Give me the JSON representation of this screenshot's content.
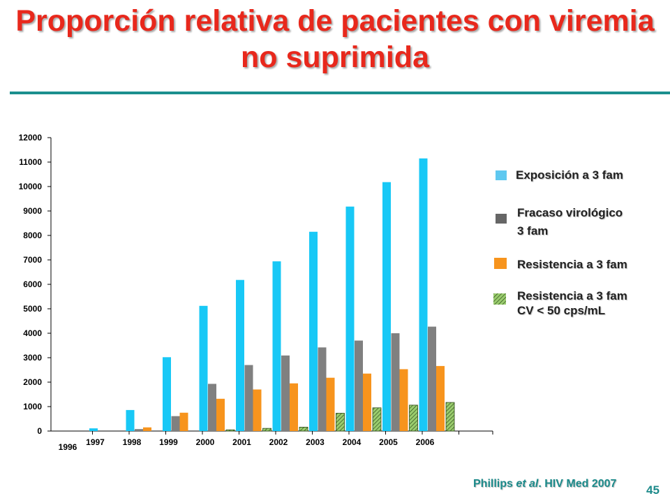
{
  "title": "Proporción relativa de pacientes con viremia no suprimida",
  "citation": {
    "before": "Phillips ",
    "italic": "et al",
    "after": ". HIV Med 2007"
  },
  "page_number": "45",
  "colors": {
    "title": "#e8281c",
    "rule": "#1b8f8e",
    "exposure": "#18c8f6",
    "failure": "#808080",
    "resistance": "#f7941d",
    "resistance_vl": "#9acd6e"
  },
  "legend": [
    {
      "label": "Exposición a 3 fam",
      "color": "#5ec8f0"
    },
    {
      "label": "Fracaso virológico\n3 fam",
      "color": "#666666"
    },
    {
      "label": "Resistencia a 3 fam",
      "color": "#f7941d"
    },
    {
      "label": "Resistencia a 3 fam\nCV < 50 cps/mL",
      "color": "#9acd6e",
      "pattern": "hatched"
    }
  ],
  "chart_data": {
    "type": "bar",
    "categories": [
      "1996",
      "1997",
      "1998",
      "1999",
      "2000",
      "2001",
      "2002",
      "2003",
      "2004",
      "2005",
      "2006"
    ],
    "series": [
      {
        "name": "Exposición a 3 fam",
        "values": [
          0,
          110,
          860,
          3020,
          5120,
          6180,
          6940,
          8150,
          9180,
          10180,
          11150
        ]
      },
      {
        "name": "Fracaso virológico 3 fam",
        "values": [
          0,
          0,
          80,
          610,
          1930,
          2700,
          3090,
          3420,
          3700,
          4000,
          4270
        ]
      },
      {
        "name": "Resistencia a 3 fam",
        "values": [
          0,
          0,
          150,
          750,
          1320,
          1700,
          1950,
          2180,
          2350,
          2530,
          2660
        ]
      },
      {
        "name": "Resistencia a 3 fam CV < 50 cps/mL",
        "values": [
          0,
          0,
          0,
          0,
          50,
          110,
          160,
          730,
          950,
          1060,
          1170
        ]
      }
    ],
    "yticks": [
      "0",
      "1000",
      "2000",
      "3000",
      "4000",
      "5000",
      "6000",
      "7000",
      "8000",
      "9000",
      "10000",
      "11000",
      "12000"
    ],
    "ylim": [
      0,
      12000
    ],
    "xlabel": "",
    "ylabel": "",
    "grid": false,
    "legend_position": "right"
  }
}
